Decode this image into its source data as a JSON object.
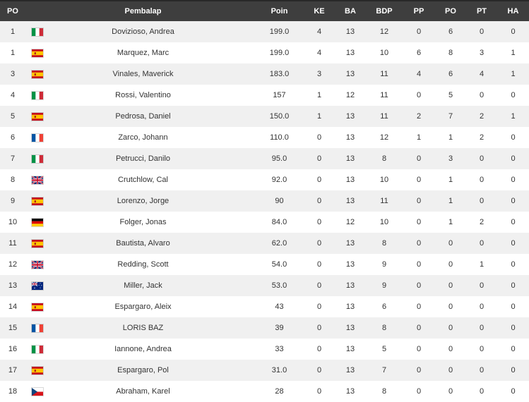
{
  "colors": {
    "header_bg": "#3e3e3e",
    "header_text": "#ffffff",
    "text": "#333333",
    "row_alt_bg": "#f0f0f0",
    "row_bg": "#ffffff",
    "top_border": "#282828"
  },
  "table": {
    "header": {
      "po": "PO",
      "flag": "",
      "rider": "Pembalap",
      "poin": "Poin",
      "ke": "KE",
      "ba": "BA",
      "bdp": "BDP",
      "pp": "PP",
      "po2": "PO",
      "pt": "PT",
      "ha": "HA"
    },
    "rows": [
      {
        "po": "1",
        "flag": "it",
        "flag_name": "italy",
        "rider": "Dovizioso, Andrea",
        "poin": "199.0",
        "ke": "4",
        "ba": "13",
        "bdp": "12",
        "pp": "0",
        "po2": "6",
        "pt": "0",
        "ha": "0"
      },
      {
        "po": "1",
        "flag": "es",
        "flag_name": "spain",
        "rider": "Marquez, Marc",
        "poin": "199.0",
        "ke": "4",
        "ba": "13",
        "bdp": "10",
        "pp": "6",
        "po2": "8",
        "pt": "3",
        "ha": "1"
      },
      {
        "po": "3",
        "flag": "es",
        "flag_name": "spain",
        "rider": "Vinales, Maverick",
        "poin": "183.0",
        "ke": "3",
        "ba": "13",
        "bdp": "11",
        "pp": "4",
        "po2": "6",
        "pt": "4",
        "ha": "1"
      },
      {
        "po": "4",
        "flag": "it",
        "flag_name": "italy",
        "rider": "Rossi, Valentino",
        "poin": "157",
        "ke": "1",
        "ba": "12",
        "bdp": "11",
        "pp": "0",
        "po2": "5",
        "pt": "0",
        "ha": "0"
      },
      {
        "po": "5",
        "flag": "es",
        "flag_name": "spain",
        "rider": "Pedrosa, Daniel",
        "poin": "150.0",
        "ke": "1",
        "ba": "13",
        "bdp": "11",
        "pp": "2",
        "po2": "7",
        "pt": "2",
        "ha": "1"
      },
      {
        "po": "6",
        "flag": "fr",
        "flag_name": "france",
        "rider": "Zarco, Johann",
        "poin": "110.0",
        "ke": "0",
        "ba": "13",
        "bdp": "12",
        "pp": "1",
        "po2": "1",
        "pt": "2",
        "ha": "0"
      },
      {
        "po": "7",
        "flag": "it",
        "flag_name": "italy",
        "rider": "Petrucci, Danilo",
        "poin": "95.0",
        "ke": "0",
        "ba": "13",
        "bdp": "8",
        "pp": "0",
        "po2": "3",
        "pt": "0",
        "ha": "0"
      },
      {
        "po": "8",
        "flag": "gb",
        "flag_name": "great-britain",
        "rider": "Crutchlow, Cal",
        "poin": "92.0",
        "ke": "0",
        "ba": "13",
        "bdp": "10",
        "pp": "0",
        "po2": "1",
        "pt": "0",
        "ha": "0"
      },
      {
        "po": "9",
        "flag": "es",
        "flag_name": "spain",
        "rider": "Lorenzo, Jorge",
        "poin": "90",
        "ke": "0",
        "ba": "13",
        "bdp": "11",
        "pp": "0",
        "po2": "1",
        "pt": "0",
        "ha": "0"
      },
      {
        "po": "10",
        "flag": "de",
        "flag_name": "germany",
        "rider": "Folger, Jonas",
        "poin": "84.0",
        "ke": "0",
        "ba": "12",
        "bdp": "10",
        "pp": "0",
        "po2": "1",
        "pt": "2",
        "ha": "0"
      },
      {
        "po": "11",
        "flag": "es",
        "flag_name": "spain",
        "rider": "Bautista, Alvaro",
        "poin": "62.0",
        "ke": "0",
        "ba": "13",
        "bdp": "8",
        "pp": "0",
        "po2": "0",
        "pt": "0",
        "ha": "0"
      },
      {
        "po": "12",
        "flag": "gb",
        "flag_name": "great-britain",
        "rider": "Redding, Scott",
        "poin": "54.0",
        "ke": "0",
        "ba": "13",
        "bdp": "9",
        "pp": "0",
        "po2": "0",
        "pt": "1",
        "ha": "0"
      },
      {
        "po": "13",
        "flag": "au",
        "flag_name": "australia",
        "rider": "Miller, Jack",
        "poin": "53.0",
        "ke": "0",
        "ba": "13",
        "bdp": "9",
        "pp": "0",
        "po2": "0",
        "pt": "0",
        "ha": "0"
      },
      {
        "po": "14",
        "flag": "es",
        "flag_name": "spain",
        "rider": "Espargaro, Aleix",
        "poin": "43",
        "ke": "0",
        "ba": "13",
        "bdp": "6",
        "pp": "0",
        "po2": "0",
        "pt": "0",
        "ha": "0"
      },
      {
        "po": "15",
        "flag": "fr",
        "flag_name": "france",
        "rider": "LORIS BAZ",
        "poin": "39",
        "ke": "0",
        "ba": "13",
        "bdp": "8",
        "pp": "0",
        "po2": "0",
        "pt": "0",
        "ha": "0"
      },
      {
        "po": "16",
        "flag": "it",
        "flag_name": "italy",
        "rider": "Iannone, Andrea",
        "poin": "33",
        "ke": "0",
        "ba": "13",
        "bdp": "5",
        "pp": "0",
        "po2": "0",
        "pt": "0",
        "ha": "0"
      },
      {
        "po": "17",
        "flag": "es",
        "flag_name": "spain",
        "rider": "Espargaro, Pol",
        "poin": "31.0",
        "ke": "0",
        "ba": "13",
        "bdp": "7",
        "pp": "0",
        "po2": "0",
        "pt": "0",
        "ha": "0"
      },
      {
        "po": "18",
        "flag": "cz",
        "flag_name": "czech-republic",
        "rider": "Abraham, Karel",
        "poin": "28",
        "ke": "0",
        "ba": "13",
        "bdp": "8",
        "pp": "0",
        "po2": "0",
        "pt": "0",
        "ha": "0"
      }
    ]
  }
}
